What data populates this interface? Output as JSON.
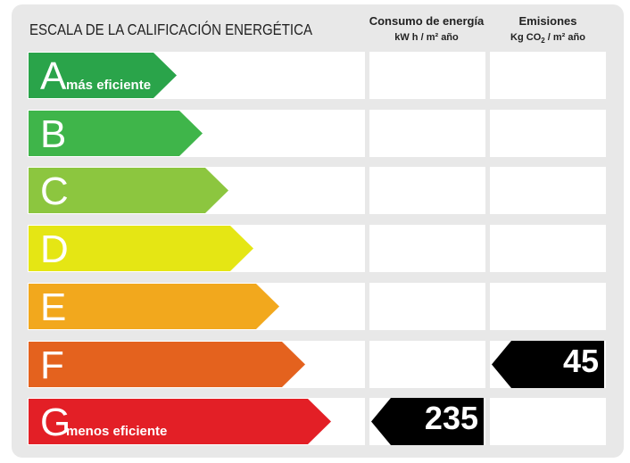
{
  "title": "ESCALA DE LA CALIFICACIÓN ENERGÉTICA",
  "columns": {
    "consumo": {
      "label": "Consumo de energía",
      "unit": "kW h / m² año"
    },
    "emisiones": {
      "label": "Emisiones",
      "unit_prefix": "Kg CO",
      "unit_sub": "2",
      "unit_suffix": " / m² año"
    }
  },
  "ratings": [
    {
      "letter": "A",
      "note": "más eficiente",
      "color": "#2aa44a"
    },
    {
      "letter": "B",
      "note": "",
      "color": "#3fb54a"
    },
    {
      "letter": "C",
      "note": "",
      "color": "#8cc63f"
    },
    {
      "letter": "D",
      "note": "",
      "color": "#e5e614"
    },
    {
      "letter": "E",
      "note": "",
      "color": "#f2a81d"
    },
    {
      "letter": "F",
      "note": "",
      "color": "#e4621e"
    },
    {
      "letter": "G",
      "note": "menos eficiente",
      "color": "#e31f26"
    }
  ],
  "consumo_value": {
    "rating": "G",
    "value": "235"
  },
  "emisiones_value": {
    "rating": "F",
    "value": "45"
  }
}
